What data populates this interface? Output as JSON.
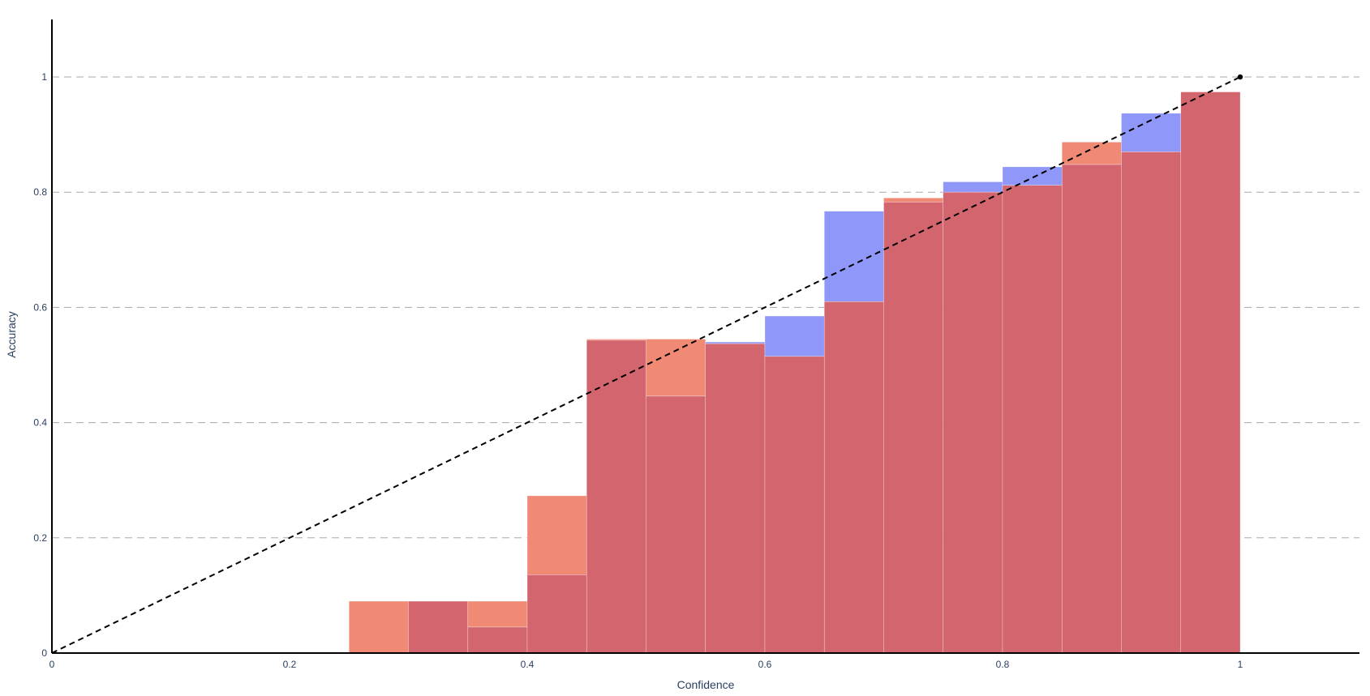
{
  "chart_data": {
    "type": "bar",
    "title": "",
    "xlabel": "Confidence",
    "ylabel": "Accuracy",
    "xlim": [
      0,
      1.1
    ],
    "ylim": [
      0,
      1.1
    ],
    "grid": "horizontal dashed",
    "x_ticks": [
      "0",
      "0.2",
      "0.4",
      "0.6",
      "0.8",
      "1"
    ],
    "y_ticks": [
      "0",
      "0.2",
      "0.4",
      "0.6",
      "0.8",
      "1"
    ],
    "bin_width": 0.05,
    "bin_left_edges": [
      0.25,
      0.3,
      0.35,
      0.4,
      0.45,
      0.5,
      0.55,
      0.6,
      0.65,
      0.7,
      0.75,
      0.8,
      0.85,
      0.9,
      0.95
    ],
    "series": [
      {
        "color": "#8f97f9",
        "values": [
          0.0,
          0.09,
          0.045,
          0.136,
          0.543,
          0.446,
          0.54,
          0.585,
          0.767,
          0.783,
          0.818,
          0.844,
          0.848,
          0.937,
          0.974
        ]
      },
      {
        "color": "#f08a74",
        "values": [
          0.09,
          0.09,
          0.09,
          0.273,
          0.545,
          0.545,
          0.537,
          0.515,
          0.61,
          0.79,
          0.8,
          0.812,
          0.887,
          0.87,
          0.974
        ]
      }
    ],
    "overlap_color": "#d3656f",
    "reference_line": {
      "style": "dashed",
      "color": "#000000",
      "points": [
        [
          0,
          0
        ],
        [
          1,
          1
        ]
      ]
    }
  }
}
